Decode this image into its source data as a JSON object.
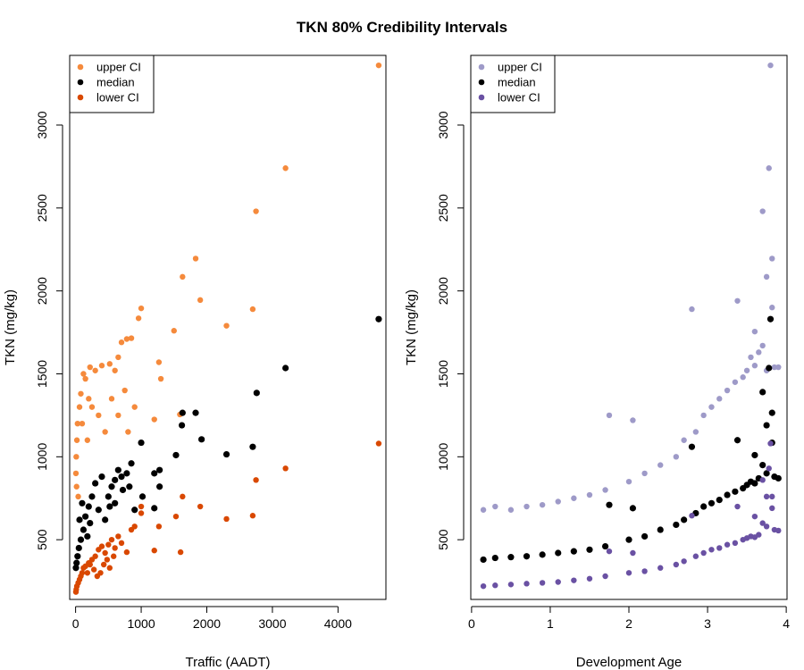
{
  "figure": {
    "title": "TKN 80% Credibility Intervals"
  },
  "chart_data": [
    {
      "type": "scatter",
      "xlabel": "Traffic (AADT)",
      "ylabel": "TKN (mg/kg)",
      "xlim": [
        -90,
        4730
      ],
      "ylim": [
        140,
        3420
      ],
      "xticks": [
        0,
        1000,
        2000,
        3000,
        4000
      ],
      "yticks": [
        500,
        1000,
        1500,
        2000,
        2500,
        3000
      ],
      "legend": {
        "position": "top-left",
        "entries": [
          "upper CI",
          "median",
          "lower CI"
        ]
      },
      "grid": false,
      "series": [
        {
          "name": "upper CI",
          "color": "#f58a3c",
          "points": [
            [
              4620,
              3360
            ],
            [
              3200,
              2740
            ],
            [
              2750,
              2480
            ],
            [
              1830,
              2195
            ],
            [
              1630,
              2085
            ],
            [
              1900,
              1945
            ],
            [
              2700,
              1890
            ],
            [
              1000,
              1895
            ],
            [
              2300,
              1790
            ],
            [
              1500,
              1760
            ],
            [
              960,
              1835
            ],
            [
              850,
              1715
            ],
            [
              780,
              1710
            ],
            [
              700,
              1690
            ],
            [
              1270,
              1570
            ],
            [
              1300,
              1470
            ],
            [
              1590,
              1255
            ],
            [
              1200,
              1225
            ],
            [
              650,
              1600
            ],
            [
              600,
              1520
            ],
            [
              520,
              1560
            ],
            [
              400,
              1550
            ],
            [
              300,
              1520
            ],
            [
              220,
              1540
            ],
            [
              150,
              1470
            ],
            [
              80,
              1380
            ],
            [
              60,
              1300
            ],
            [
              30,
              1200
            ],
            [
              20,
              1100
            ],
            [
              10,
              1000
            ],
            [
              5,
              900
            ],
            [
              15,
              820
            ],
            [
              40,
              760
            ],
            [
              100,
              1200
            ],
            [
              180,
              1100
            ],
            [
              250,
              1300
            ],
            [
              350,
              1250
            ],
            [
              450,
              1150
            ],
            [
              550,
              1350
            ],
            [
              650,
              1250
            ],
            [
              800,
              1150
            ],
            [
              900,
              1300
            ],
            [
              750,
              1400
            ],
            [
              120,
              1500
            ],
            [
              200,
              1350
            ]
          ]
        },
        {
          "name": "median",
          "color": "#000000",
          "points": [
            [
              4620,
              1830
            ],
            [
              3200,
              1535
            ],
            [
              2760,
              1385
            ],
            [
              1630,
              1265
            ],
            [
              1830,
              1265
            ],
            [
              1620,
              1190
            ],
            [
              1920,
              1105
            ],
            [
              1000,
              1085
            ],
            [
              2300,
              1015
            ],
            [
              1530,
              1010
            ],
            [
              2700,
              1060
            ],
            [
              1280,
              920
            ],
            [
              1200,
              900
            ],
            [
              850,
              960
            ],
            [
              780,
              900
            ],
            [
              700,
              880
            ],
            [
              650,
              920
            ],
            [
              1280,
              820
            ],
            [
              1020,
              760
            ],
            [
              1200,
              690
            ],
            [
              900,
              680
            ],
            [
              600,
              860
            ],
            [
              550,
              820
            ],
            [
              500,
              760
            ],
            [
              400,
              880
            ],
            [
              300,
              840
            ],
            [
              250,
              760
            ],
            [
              200,
              700
            ],
            [
              150,
              640
            ],
            [
              120,
              560
            ],
            [
              80,
              500
            ],
            [
              50,
              450
            ],
            [
              30,
              400
            ],
            [
              15,
              360
            ],
            [
              5,
              330
            ],
            [
              60,
              620
            ],
            [
              100,
              720
            ],
            [
              180,
              520
            ],
            [
              220,
              600
            ],
            [
              350,
              680
            ],
            [
              450,
              620
            ],
            [
              520,
              700
            ],
            [
              600,
              720
            ],
            [
              720,
              800
            ],
            [
              820,
              820
            ]
          ]
        },
        {
          "name": "lower CI",
          "color": "#d94801",
          "points": [
            [
              4620,
              1080
            ],
            [
              3200,
              930
            ],
            [
              2750,
              860
            ],
            [
              2700,
              645
            ],
            [
              2300,
              625
            ],
            [
              1630,
              760
            ],
            [
              1900,
              700
            ],
            [
              1530,
              640
            ],
            [
              1600,
              425
            ],
            [
              1000,
              700
            ],
            [
              1000,
              660
            ],
            [
              1200,
              435
            ],
            [
              1270,
              580
            ],
            [
              900,
              580
            ],
            [
              850,
              560
            ],
            [
              780,
              425
            ],
            [
              700,
              480
            ],
            [
              650,
              520
            ],
            [
              600,
              450
            ],
            [
              550,
              500
            ],
            [
              500,
              470
            ],
            [
              450,
              420
            ],
            [
              400,
              460
            ],
            [
              350,
              440
            ],
            [
              300,
              400
            ],
            [
              250,
              380
            ],
            [
              200,
              360
            ],
            [
              150,
              340
            ],
            [
              100,
              300
            ],
            [
              80,
              280
            ],
            [
              60,
              260
            ],
            [
              40,
              240
            ],
            [
              20,
              220
            ],
            [
              10,
              200
            ],
            [
              5,
              185
            ],
            [
              120,
              330
            ],
            [
              180,
              300
            ],
            [
              220,
              350
            ],
            [
              280,
              320
            ],
            [
              330,
              280
            ],
            [
              380,
              300
            ],
            [
              430,
              350
            ],
            [
              480,
              380
            ],
            [
              520,
              330
            ],
            [
              580,
              400
            ]
          ]
        }
      ]
    },
    {
      "type": "scatter",
      "xlabel": "Development Age",
      "ylabel": "TKN (mg/kg)",
      "xlim": [
        -0.01,
        4.01
      ],
      "ylim": [
        140,
        3420
      ],
      "xticks": [
        0,
        1,
        2,
        3,
        4
      ],
      "yticks": [
        500,
        1000,
        1500,
        2000,
        2500,
        3000
      ],
      "legend": {
        "position": "top-left",
        "entries": [
          "upper CI",
          "median",
          "lower CI"
        ]
      },
      "grid": false,
      "series": [
        {
          "name": "upper CI",
          "color": "#9e9ac8",
          "points": [
            [
              0.15,
              680
            ],
            [
              0.3,
              700
            ],
            [
              0.5,
              680
            ],
            [
              0.7,
              700
            ],
            [
              0.9,
              710
            ],
            [
              1.1,
              730
            ],
            [
              1.3,
              750
            ],
            [
              1.5,
              770
            ],
            [
              1.7,
              800
            ],
            [
              1.75,
              1250
            ],
            [
              2.0,
              850
            ],
            [
              2.05,
              1220
            ],
            [
              2.2,
              900
            ],
            [
              2.4,
              950
            ],
            [
              2.6,
              1000
            ],
            [
              2.7,
              1100
            ],
            [
              2.8,
              1890
            ],
            [
              2.85,
              1150
            ],
            [
              2.95,
              1250
            ],
            [
              3.05,
              1300
            ],
            [
              3.15,
              1350
            ],
            [
              3.25,
              1400
            ],
            [
              3.35,
              1450
            ],
            [
              3.38,
              1940
            ],
            [
              3.45,
              1480
            ],
            [
              3.5,
              1520
            ],
            [
              3.55,
              1600
            ],
            [
              3.6,
              1550
            ],
            [
              3.65,
              1630
            ],
            [
              3.7,
              2480
            ],
            [
              3.75,
              2085
            ],
            [
              3.78,
              2740
            ],
            [
              3.8,
              3360
            ],
            [
              3.82,
              2195
            ],
            [
              3.85,
              1540
            ],
            [
              3.9,
              1540
            ],
            [
              3.6,
              1755
            ],
            [
              3.7,
              1670
            ],
            [
              3.82,
              1900
            ],
            [
              3.75,
              1520
            ]
          ]
        },
        {
          "name": "median",
          "color": "#000000",
          "points": [
            [
              0.15,
              380
            ],
            [
              0.3,
              390
            ],
            [
              0.5,
              395
            ],
            [
              0.7,
              400
            ],
            [
              0.9,
              410
            ],
            [
              1.1,
              420
            ],
            [
              1.3,
              430
            ],
            [
              1.5,
              440
            ],
            [
              1.7,
              460
            ],
            [
              1.75,
              710
            ],
            [
              2.0,
              500
            ],
            [
              2.05,
              690
            ],
            [
              2.2,
              520
            ],
            [
              2.4,
              560
            ],
            [
              2.6,
              590
            ],
            [
              2.7,
              620
            ],
            [
              2.8,
              1060
            ],
            [
              2.85,
              660
            ],
            [
              2.95,
              700
            ],
            [
              3.05,
              720
            ],
            [
              3.15,
              740
            ],
            [
              3.25,
              770
            ],
            [
              3.35,
              790
            ],
            [
              3.38,
              1100
            ],
            [
              3.45,
              810
            ],
            [
              3.5,
              830
            ],
            [
              3.55,
              850
            ],
            [
              3.6,
              840
            ],
            [
              3.65,
              870
            ],
            [
              3.7,
              1390
            ],
            [
              3.75,
              1190
            ],
            [
              3.78,
              1535
            ],
            [
              3.8,
              1830
            ],
            [
              3.82,
              1265
            ],
            [
              3.85,
              880
            ],
            [
              3.9,
              870
            ],
            [
              3.6,
              1010
            ],
            [
              3.7,
              950
            ],
            [
              3.82,
              1085
            ],
            [
              3.75,
              900
            ]
          ]
        },
        {
          "name": "lower CI",
          "color": "#6a51a3",
          "points": [
            [
              0.15,
              220
            ],
            [
              0.3,
              225
            ],
            [
              0.5,
              230
            ],
            [
              0.7,
              235
            ],
            [
              0.9,
              240
            ],
            [
              1.1,
              245
            ],
            [
              1.3,
              255
            ],
            [
              1.5,
              265
            ],
            [
              1.7,
              280
            ],
            [
              1.75,
              430
            ],
            [
              2.0,
              300
            ],
            [
              2.05,
              420
            ],
            [
              2.2,
              310
            ],
            [
              2.4,
              330
            ],
            [
              2.6,
              350
            ],
            [
              2.7,
              370
            ],
            [
              2.8,
              645
            ],
            [
              2.85,
              400
            ],
            [
              2.95,
              420
            ],
            [
              3.05,
              440
            ],
            [
              3.15,
              450
            ],
            [
              3.25,
              470
            ],
            [
              3.35,
              480
            ],
            [
              3.38,
              700
            ],
            [
              3.45,
              500
            ],
            [
              3.5,
              510
            ],
            [
              3.55,
              520
            ],
            [
              3.6,
              515
            ],
            [
              3.65,
              530
            ],
            [
              3.7,
              860
            ],
            [
              3.75,
              760
            ],
            [
              3.78,
              930
            ],
            [
              3.8,
              1080
            ],
            [
              3.82,
              760
            ],
            [
              3.85,
              560
            ],
            [
              3.9,
              555
            ],
            [
              3.6,
              640
            ],
            [
              3.7,
              600
            ],
            [
              3.82,
              690
            ],
            [
              3.75,
              580
            ]
          ]
        }
      ]
    }
  ]
}
